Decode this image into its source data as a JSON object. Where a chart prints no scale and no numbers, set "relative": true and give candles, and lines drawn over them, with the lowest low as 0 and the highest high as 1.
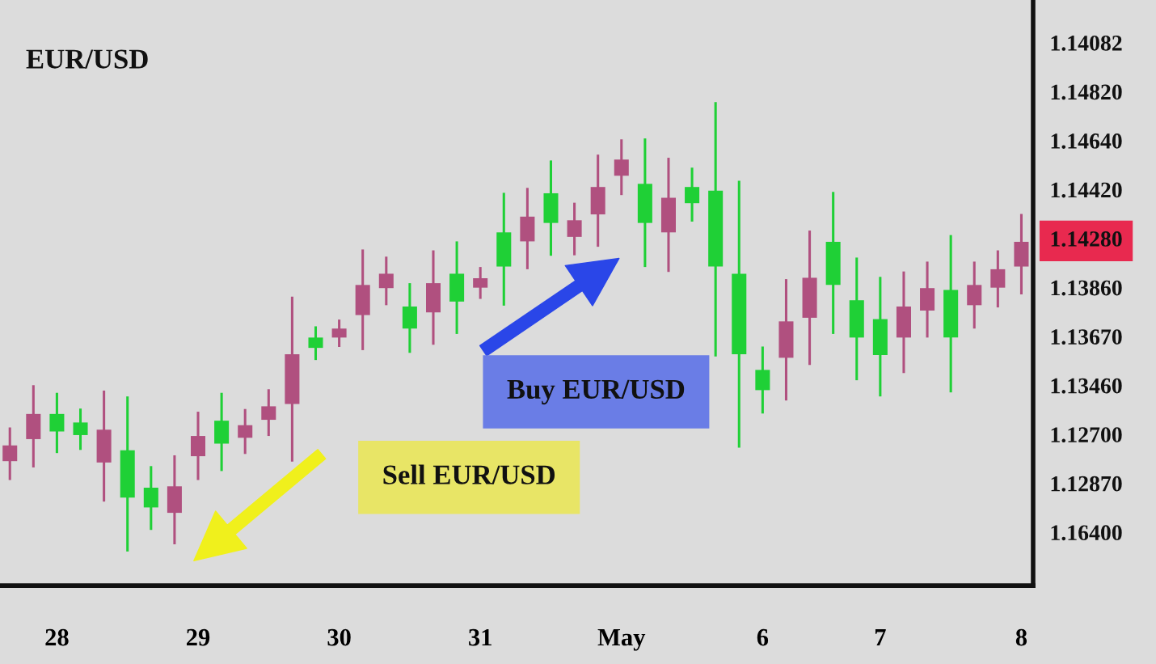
{
  "chart_data": {
    "type": "candlestick",
    "title": "EUR/USD",
    "relative": true,
    "categories": [
      null,
      null,
      "28",
      null,
      null,
      null,
      null,
      null,
      "29",
      null,
      null,
      null,
      null,
      null,
      "30",
      null,
      null,
      null,
      null,
      null,
      "31",
      null,
      null,
      null,
      null,
      null,
      "May",
      null,
      null,
      null,
      null,
      null,
      "6",
      null,
      null,
      null,
      null,
      "7",
      null,
      null,
      null,
      null,
      null,
      "8"
    ],
    "ohlc": [
      [
        0.236,
        0.276,
        0.159,
        0.201
      ],
      [
        0.306,
        0.37,
        0.187,
        0.25
      ],
      [
        0.267,
        0.353,
        0.219,
        0.306
      ],
      [
        0.259,
        0.318,
        0.226,
        0.287
      ],
      [
        0.271,
        0.358,
        0.111,
        0.198
      ],
      [
        0.12,
        0.345,
        0,
        0.225
      ],
      [
        0.098,
        0.19,
        0.048,
        0.142
      ],
      [
        0.145,
        0.214,
        0.016,
        0.086
      ],
      [
        0.257,
        0.311,
        0.159,
        0.212
      ],
      [
        0.24,
        0.353,
        0.179,
        0.291
      ],
      [
        0.281,
        0.317,
        0.217,
        0.253
      ],
      [
        0.323,
        0.361,
        0.257,
        0.293
      ],
      [
        0.439,
        0.567,
        0.2,
        0.328
      ],
      [
        0.453,
        0.501,
        0.426,
        0.476
      ],
      [
        0.496,
        0.516,
        0.455,
        0.476
      ],
      [
        0.593,
        0.672,
        0.448,
        0.526
      ],
      [
        0.618,
        0.656,
        0.548,
        0.586
      ],
      [
        0.496,
        0.597,
        0.442,
        0.545
      ],
      [
        0.597,
        0.67,
        0.46,
        0.532
      ],
      [
        0.556,
        0.69,
        0.484,
        0.618
      ],
      [
        0.608,
        0.633,
        0.562,
        0.587
      ],
      [
        0.634,
        0.798,
        0.547,
        0.71
      ],
      [
        0.745,
        0.809,
        0.628,
        0.69
      ],
      [
        0.731,
        0.87,
        0.658,
        0.797
      ],
      [
        0.737,
        0.776,
        0.659,
        0.7
      ],
      [
        0.811,
        0.883,
        0.678,
        0.75
      ],
      [
        0.872,
        0.917,
        0.793,
        0.836
      ],
      [
        0.731,
        0.919,
        0.633,
        0.818
      ],
      [
        0.787,
        0.876,
        0.622,
        0.71
      ],
      [
        0.775,
        0.854,
        0.734,
        0.811
      ],
      [
        0.634,
        1,
        0.434,
        0.803
      ],
      [
        0.439,
        0.825,
        0.231,
        0.618
      ],
      [
        0.359,
        0.456,
        0.307,
        0.404
      ],
      [
        0.512,
        0.606,
        0.336,
        0.431
      ],
      [
        0.609,
        0.714,
        0.415,
        0.52
      ],
      [
        0.593,
        0.8,
        0.484,
        0.689
      ],
      [
        0.476,
        0.654,
        0.381,
        0.559
      ],
      [
        0.437,
        0.611,
        0.345,
        0.517
      ],
      [
        0.545,
        0.623,
        0.397,
        0.476
      ],
      [
        0.586,
        0.645,
        0.476,
        0.536
      ],
      [
        0.476,
        0.704,
        0.354,
        0.582
      ],
      [
        0.593,
        0.645,
        0.496,
        0.548
      ],
      [
        0.628,
        0.67,
        0.543,
        0.587
      ],
      [
        0.689,
        0.751,
        0.572,
        0.634
      ]
    ],
    "colors": [
      "#b0507f",
      "#b0507f",
      "#1fd036",
      "#1fd036",
      "#b0507f",
      "#1fd036",
      "#1fd036",
      "#b0507f",
      "#b0507f",
      "#1fd036",
      "#b0507f",
      "#b0507f",
      "#b0507f",
      "#1fd036",
      "#b0507f",
      "#b0507f",
      "#b0507f",
      "#1fd036",
      "#b0507f",
      "#1fd036",
      "#b0507f",
      "#1fd036",
      "#b0507f",
      "#1fd036",
      "#b0507f",
      "#b0507f",
      "#b0507f",
      "#1fd036",
      "#b0507f",
      "#1fd036",
      "#1fd036",
      "#1fd036",
      "#1fd036",
      "#b0507f",
      "#b0507f",
      "#1fd036",
      "#1fd036",
      "#1fd036",
      "#b0507f",
      "#b0507f",
      "#1fd036",
      "#b0507f",
      "#b0507f",
      "#b0507f"
    ],
    "annotations": [
      "Buy EUR/USD",
      "Sell EUR/USD",
      "1.14082",
      "1.14820",
      "1.14640",
      "1.14420",
      "1.14280",
      "1.13860",
      "1.13670",
      "1.13460",
      "1.12700",
      "1.12870",
      "1.16400"
    ],
    "grid": false
  }
}
